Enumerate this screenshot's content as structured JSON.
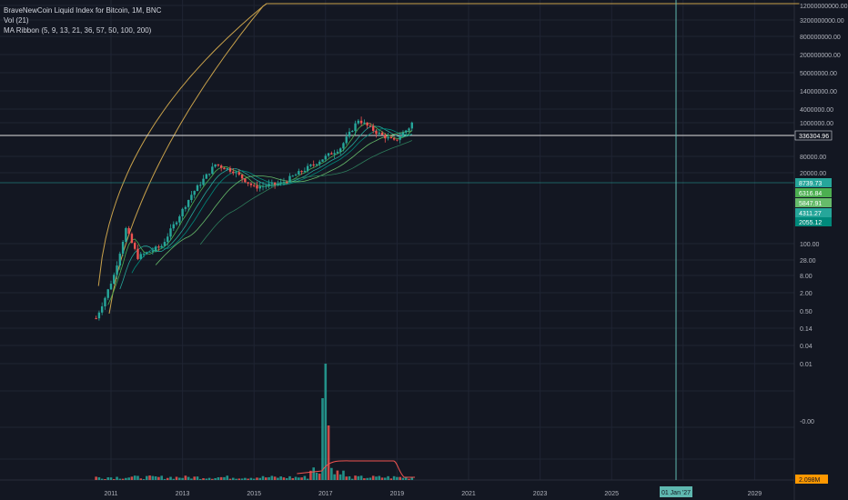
{
  "chart_data": {
    "type": "candlestick",
    "title": "BraveNewCoin Liquid Index for Bitcoin, 1M, BNC",
    "log_scale": true,
    "x_axis": {
      "ticks": [
        "2011",
        "2013",
        "2015",
        "2017",
        "2019",
        "2021",
        "2023",
        "2025",
        "2027",
        "2029"
      ],
      "range": [
        "2010-07",
        "2030-05"
      ],
      "cursor_label": "01 Jan '27"
    },
    "y_axis": {
      "ticks": [
        "12000000000.00",
        "3200000000.00",
        "800000000.00",
        "200000000.00",
        "50000000.00",
        "14000000.00",
        "4000000.00",
        "1000000.00",
        "80000.00",
        "20000.00",
        "100.00",
        "28.00",
        "8.00",
        "2.00",
        "0.50",
        "0.14",
        "0.04",
        "0.01",
        "-0.00"
      ],
      "price_labels": [
        {
          "text": "336304.96",
          "color": "#ffffff",
          "bg": "#131722",
          "border": "#d1d4dc"
        },
        {
          "text": "8739.73",
          "color": "#26a69a"
        },
        {
          "text": "6316.84",
          "color": "#4caf50"
        },
        {
          "text": "5847.91",
          "color": "#66bb6a"
        },
        {
          "text": "4311.27",
          "color": "#26a69a"
        },
        {
          "text": "2055.12",
          "color": "#00897b"
        }
      ],
      "volume_label": {
        "text": "2.098M",
        "color": "#ff9800"
      }
    },
    "studies": {
      "volume": "Vol (21)",
      "ma_ribbon": "MA Ribbon (5, 9, 13, 21, 36, 57, 50, 100, 200)"
    },
    "price_series": [
      {
        "t": "2010-08",
        "v": 0.07
      },
      {
        "t": "2010-11",
        "v": 0.25
      },
      {
        "t": "2011-02",
        "v": 1.0
      },
      {
        "t": "2011-06",
        "v": 17
      },
      {
        "t": "2011-10",
        "v": 3
      },
      {
        "t": "2012-06",
        "v": 6
      },
      {
        "t": "2013-04",
        "v": 140
      },
      {
        "t": "2013-12",
        "v": 900
      },
      {
        "t": "2014-06",
        "v": 600
      },
      {
        "t": "2015-01",
        "v": 220
      },
      {
        "t": "2015-10",
        "v": 280
      },
      {
        "t": "2016-06",
        "v": 650
      },
      {
        "t": "2017-06",
        "v": 2500
      },
      {
        "t": "2017-12",
        "v": 14000
      },
      {
        "t": "2018-06",
        "v": 6500
      },
      {
        "t": "2018-12",
        "v": 3700
      },
      {
        "t": "2019-05",
        "v": 8600
      },
      {
        "t": "2019-06",
        "v": 11500
      }
    ],
    "volume_spike": {
      "t": "2017-01",
      "level": "max"
    },
    "colors": {
      "up": "#26a69a",
      "down": "#ef5350",
      "channel": "#c9a24b",
      "grid": "#1f2433",
      "background": "#131722",
      "cursor": "#5fb8b0"
    }
  }
}
